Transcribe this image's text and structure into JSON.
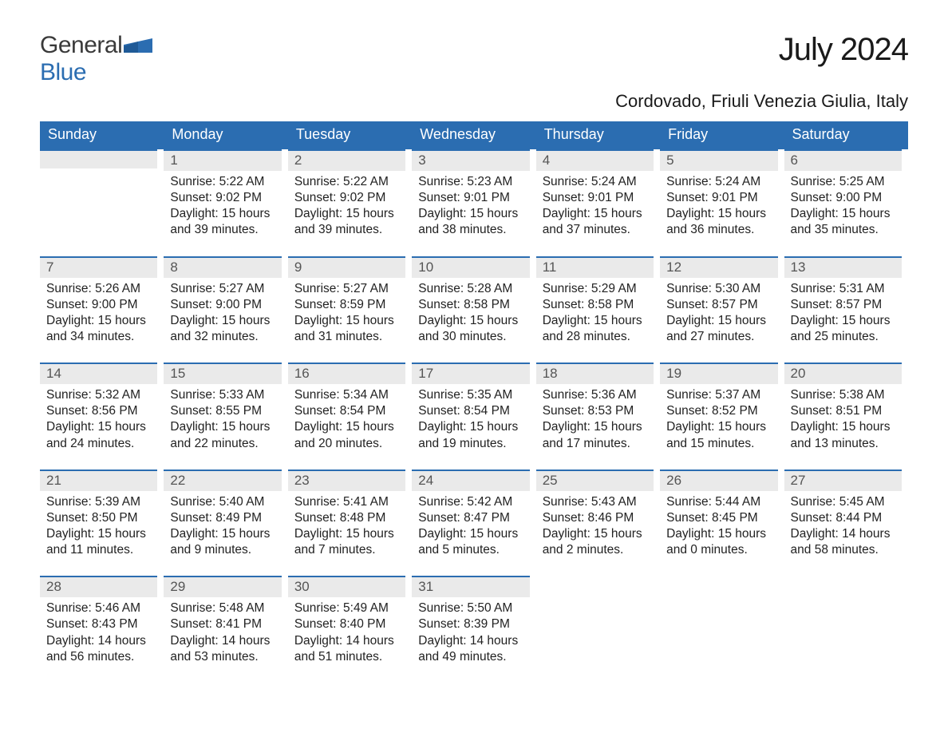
{
  "brand": {
    "name_a": "General",
    "name_b": "Blue",
    "accent": "#2b6db1"
  },
  "title": "July 2024",
  "subtitle": "Cordovado, Friuli Venezia Giulia, Italy",
  "colors": {
    "header_bg": "#2b6db1",
    "header_text": "#ffffff",
    "daynum_bg": "#eaeaea",
    "daynum_border": "#2b6db1",
    "text": "#222222",
    "background": "#ffffff"
  },
  "typography": {
    "title_fontsize": 40,
    "subtitle_fontsize": 22,
    "weekday_fontsize": 18,
    "body_fontsize": 15.5
  },
  "layout": {
    "columns": 7,
    "rows": 5,
    "first_day_column_index": 1
  },
  "weekdays": [
    "Sunday",
    "Monday",
    "Tuesday",
    "Wednesday",
    "Thursday",
    "Friday",
    "Saturday"
  ],
  "days": [
    {
      "n": 1,
      "sunrise": "5:22 AM",
      "sunset": "9:02 PM",
      "daylight": "15 hours and 39 minutes."
    },
    {
      "n": 2,
      "sunrise": "5:22 AM",
      "sunset": "9:02 PM",
      "daylight": "15 hours and 39 minutes."
    },
    {
      "n": 3,
      "sunrise": "5:23 AM",
      "sunset": "9:01 PM",
      "daylight": "15 hours and 38 minutes."
    },
    {
      "n": 4,
      "sunrise": "5:24 AM",
      "sunset": "9:01 PM",
      "daylight": "15 hours and 37 minutes."
    },
    {
      "n": 5,
      "sunrise": "5:24 AM",
      "sunset": "9:01 PM",
      "daylight": "15 hours and 36 minutes."
    },
    {
      "n": 6,
      "sunrise": "5:25 AM",
      "sunset": "9:00 PM",
      "daylight": "15 hours and 35 minutes."
    },
    {
      "n": 7,
      "sunrise": "5:26 AM",
      "sunset": "9:00 PM",
      "daylight": "15 hours and 34 minutes."
    },
    {
      "n": 8,
      "sunrise": "5:27 AM",
      "sunset": "9:00 PM",
      "daylight": "15 hours and 32 minutes."
    },
    {
      "n": 9,
      "sunrise": "5:27 AM",
      "sunset": "8:59 PM",
      "daylight": "15 hours and 31 minutes."
    },
    {
      "n": 10,
      "sunrise": "5:28 AM",
      "sunset": "8:58 PM",
      "daylight": "15 hours and 30 minutes."
    },
    {
      "n": 11,
      "sunrise": "5:29 AM",
      "sunset": "8:58 PM",
      "daylight": "15 hours and 28 minutes."
    },
    {
      "n": 12,
      "sunrise": "5:30 AM",
      "sunset": "8:57 PM",
      "daylight": "15 hours and 27 minutes."
    },
    {
      "n": 13,
      "sunrise": "5:31 AM",
      "sunset": "8:57 PM",
      "daylight": "15 hours and 25 minutes."
    },
    {
      "n": 14,
      "sunrise": "5:32 AM",
      "sunset": "8:56 PM",
      "daylight": "15 hours and 24 minutes."
    },
    {
      "n": 15,
      "sunrise": "5:33 AM",
      "sunset": "8:55 PM",
      "daylight": "15 hours and 22 minutes."
    },
    {
      "n": 16,
      "sunrise": "5:34 AM",
      "sunset": "8:54 PM",
      "daylight": "15 hours and 20 minutes."
    },
    {
      "n": 17,
      "sunrise": "5:35 AM",
      "sunset": "8:54 PM",
      "daylight": "15 hours and 19 minutes."
    },
    {
      "n": 18,
      "sunrise": "5:36 AM",
      "sunset": "8:53 PM",
      "daylight": "15 hours and 17 minutes."
    },
    {
      "n": 19,
      "sunrise": "5:37 AM",
      "sunset": "8:52 PM",
      "daylight": "15 hours and 15 minutes."
    },
    {
      "n": 20,
      "sunrise": "5:38 AM",
      "sunset": "8:51 PM",
      "daylight": "15 hours and 13 minutes."
    },
    {
      "n": 21,
      "sunrise": "5:39 AM",
      "sunset": "8:50 PM",
      "daylight": "15 hours and 11 minutes."
    },
    {
      "n": 22,
      "sunrise": "5:40 AM",
      "sunset": "8:49 PM",
      "daylight": "15 hours and 9 minutes."
    },
    {
      "n": 23,
      "sunrise": "5:41 AM",
      "sunset": "8:48 PM",
      "daylight": "15 hours and 7 minutes."
    },
    {
      "n": 24,
      "sunrise": "5:42 AM",
      "sunset": "8:47 PM",
      "daylight": "15 hours and 5 minutes."
    },
    {
      "n": 25,
      "sunrise": "5:43 AM",
      "sunset": "8:46 PM",
      "daylight": "15 hours and 2 minutes."
    },
    {
      "n": 26,
      "sunrise": "5:44 AM",
      "sunset": "8:45 PM",
      "daylight": "15 hours and 0 minutes."
    },
    {
      "n": 27,
      "sunrise": "5:45 AM",
      "sunset": "8:44 PM",
      "daylight": "14 hours and 58 minutes."
    },
    {
      "n": 28,
      "sunrise": "5:46 AM",
      "sunset": "8:43 PM",
      "daylight": "14 hours and 56 minutes."
    },
    {
      "n": 29,
      "sunrise": "5:48 AM",
      "sunset": "8:41 PM",
      "daylight": "14 hours and 53 minutes."
    },
    {
      "n": 30,
      "sunrise": "5:49 AM",
      "sunset": "8:40 PM",
      "daylight": "14 hours and 51 minutes."
    },
    {
      "n": 31,
      "sunrise": "5:50 AM",
      "sunset": "8:39 PM",
      "daylight": "14 hours and 49 minutes."
    }
  ],
  "labels": {
    "sunrise": "Sunrise: ",
    "sunset": "Sunset: ",
    "daylight": "Daylight: "
  }
}
